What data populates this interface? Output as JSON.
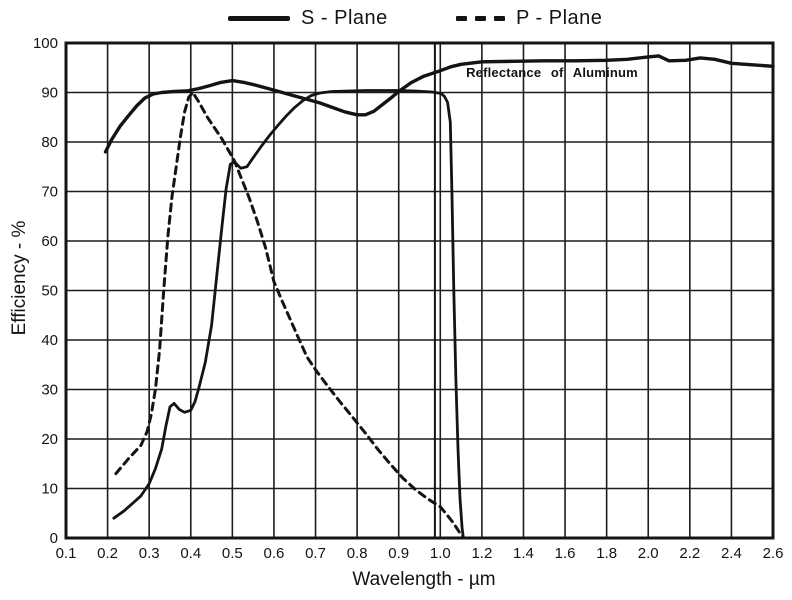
{
  "legend": {
    "s_plane_label": "S - Plane",
    "p_plane_label": "P - Plane"
  },
  "axes": {
    "x_label": "Wavelength - µm",
    "y_label": "Efficiency - %"
  },
  "annotation": {
    "reflectance_label": "Reflectance of Aluminum"
  },
  "colors": {
    "ink": "#141414",
    "grid": "#1c1c1c",
    "background": "#ffffff"
  },
  "chart_data": {
    "type": "line",
    "xlabel": "Wavelength - µm",
    "ylabel": "Efficiency - %",
    "ylim": [
      0,
      100
    ],
    "grid": true,
    "legend_position": "top",
    "x_scale_note": "piecewise linear axis: 0.1 per division from 0.1 to 1.0, then 0.2 per division from 1.0 to 2.6; scale change marked by a double vertical line at 1.0",
    "x_axis_break": 0.987,
    "x_ticks": [
      0.1,
      0.2,
      0.3,
      0.4,
      0.5,
      0.6,
      0.7,
      0.8,
      0.9,
      1.0,
      1.2,
      1.4,
      1.6,
      1.8,
      2.0,
      2.2,
      2.4,
      2.6
    ],
    "x_tick_labels": [
      "0.1",
      "0.2",
      "0.3",
      "0.4",
      "0.5",
      "0.6",
      "0.7",
      "0.8",
      "0.9",
      "1.0",
      "1.2",
      "1.4",
      "1.6",
      "1.8",
      "2.0",
      "2.2",
      "2.4",
      "2.6"
    ],
    "y_ticks": [
      0,
      10,
      20,
      30,
      40,
      50,
      60,
      70,
      80,
      90,
      100
    ],
    "y_tick_labels": [
      "0",
      "10",
      "20",
      "30",
      "40",
      "50",
      "60",
      "70",
      "80",
      "90",
      "100"
    ],
    "series": [
      {
        "name": "S - Plane",
        "style": "solid",
        "points": [
          [
            0.215,
            4
          ],
          [
            0.24,
            5.5
          ],
          [
            0.26,
            7
          ],
          [
            0.28,
            8.5
          ],
          [
            0.3,
            11
          ],
          [
            0.315,
            14
          ],
          [
            0.33,
            18
          ],
          [
            0.34,
            22.5
          ],
          [
            0.35,
            26.5
          ],
          [
            0.36,
            27.2
          ],
          [
            0.372,
            26
          ],
          [
            0.385,
            25.4
          ],
          [
            0.4,
            25.8
          ],
          [
            0.41,
            27.5
          ],
          [
            0.42,
            30.5
          ],
          [
            0.435,
            35.5
          ],
          [
            0.45,
            43
          ],
          [
            0.465,
            55
          ],
          [
            0.475,
            63
          ],
          [
            0.485,
            70.5
          ],
          [
            0.495,
            75.5
          ],
          [
            0.505,
            76
          ],
          [
            0.52,
            74.7
          ],
          [
            0.535,
            75
          ],
          [
            0.55,
            76.8
          ],
          [
            0.57,
            79.2
          ],
          [
            0.59,
            81.4
          ],
          [
            0.61,
            83.4
          ],
          [
            0.63,
            85.3
          ],
          [
            0.65,
            87
          ],
          [
            0.67,
            88.4
          ],
          [
            0.69,
            89.4
          ],
          [
            0.71,
            89.9
          ],
          [
            0.74,
            90.2
          ],
          [
            0.78,
            90.3
          ],
          [
            0.82,
            90.4
          ],
          [
            0.86,
            90.4
          ],
          [
            0.9,
            90.4
          ],
          [
            0.94,
            90.3
          ],
          [
            0.98,
            90.1
          ],
          [
            1.005,
            89.8
          ],
          [
            1.02,
            89.2
          ],
          [
            1.035,
            88
          ],
          [
            1.048,
            84
          ],
          [
            1.056,
            70
          ],
          [
            1.065,
            50
          ],
          [
            1.075,
            32
          ],
          [
            1.085,
            18
          ],
          [
            1.095,
            8
          ],
          [
            1.105,
            2
          ],
          [
            1.11,
            0.3
          ]
        ]
      },
      {
        "name": "P - Plane",
        "style": "dashed",
        "points": [
          [
            0.22,
            13
          ],
          [
            0.25,
            16
          ],
          [
            0.28,
            18.7
          ],
          [
            0.295,
            21.5
          ],
          [
            0.305,
            25
          ],
          [
            0.315,
            30
          ],
          [
            0.325,
            38
          ],
          [
            0.335,
            50
          ],
          [
            0.345,
            61
          ],
          [
            0.355,
            69
          ],
          [
            0.365,
            75
          ],
          [
            0.375,
            81
          ],
          [
            0.385,
            86
          ],
          [
            0.395,
            89
          ],
          [
            0.405,
            90
          ],
          [
            0.42,
            88
          ],
          [
            0.44,
            85
          ],
          [
            0.46,
            82.5
          ],
          [
            0.475,
            80.6
          ],
          [
            0.49,
            78.4
          ],
          [
            0.505,
            76.2
          ],
          [
            0.52,
            73
          ],
          [
            0.54,
            68.8
          ],
          [
            0.56,
            64
          ],
          [
            0.58,
            58.6
          ],
          [
            0.6,
            51.8
          ],
          [
            0.62,
            47.8
          ],
          [
            0.64,
            44
          ],
          [
            0.66,
            40.2
          ],
          [
            0.68,
            36.5
          ],
          [
            0.7,
            34
          ],
          [
            0.73,
            30.6
          ],
          [
            0.76,
            27.4
          ],
          [
            0.79,
            24.3
          ],
          [
            0.82,
            21.2
          ],
          [
            0.85,
            17.9
          ],
          [
            0.88,
            14.9
          ],
          [
            0.91,
            12.1
          ],
          [
            0.94,
            9.8
          ],
          [
            0.97,
            7.9
          ],
          [
            1.0,
            6.3
          ],
          [
            1.03,
            4.8
          ],
          [
            1.06,
            3.2
          ],
          [
            1.09,
            1.3
          ],
          [
            1.11,
            0.2
          ]
        ]
      },
      {
        "name": "Reflectance of Aluminum",
        "style": "solid-thick",
        "points": [
          [
            0.195,
            78
          ],
          [
            0.21,
            80.5
          ],
          [
            0.23,
            83.2
          ],
          [
            0.25,
            85.3
          ],
          [
            0.27,
            87.3
          ],
          [
            0.29,
            88.9
          ],
          [
            0.31,
            89.7
          ],
          [
            0.33,
            90
          ],
          [
            0.36,
            90.2
          ],
          [
            0.39,
            90.3
          ],
          [
            0.42,
            90.8
          ],
          [
            0.45,
            91.5
          ],
          [
            0.47,
            92
          ],
          [
            0.5,
            92.4
          ],
          [
            0.53,
            92
          ],
          [
            0.56,
            91.4
          ],
          [
            0.59,
            90.7
          ],
          [
            0.62,
            90
          ],
          [
            0.65,
            89.3
          ],
          [
            0.68,
            88.6
          ],
          [
            0.71,
            87.9
          ],
          [
            0.74,
            87
          ],
          [
            0.77,
            86.1
          ],
          [
            0.8,
            85.5
          ],
          [
            0.82,
            85.5
          ],
          [
            0.84,
            86.2
          ],
          [
            0.86,
            87.5
          ],
          [
            0.88,
            88.8
          ],
          [
            0.9,
            90.2
          ],
          [
            0.93,
            92
          ],
          [
            0.96,
            93.3
          ],
          [
            1.0,
            94.4
          ],
          [
            1.05,
            95.2
          ],
          [
            1.1,
            95.7
          ],
          [
            1.2,
            96.2
          ],
          [
            1.35,
            96.3
          ],
          [
            1.5,
            96.4
          ],
          [
            1.65,
            96.4
          ],
          [
            1.8,
            96.5
          ],
          [
            1.9,
            96.7
          ],
          [
            2.0,
            97.2
          ],
          [
            2.05,
            97.4
          ],
          [
            2.1,
            96.4
          ],
          [
            2.18,
            96.5
          ],
          [
            2.25,
            97
          ],
          [
            2.32,
            96.7
          ],
          [
            2.4,
            95.9
          ],
          [
            2.5,
            95.6
          ],
          [
            2.6,
            95.3
          ]
        ]
      }
    ]
  }
}
